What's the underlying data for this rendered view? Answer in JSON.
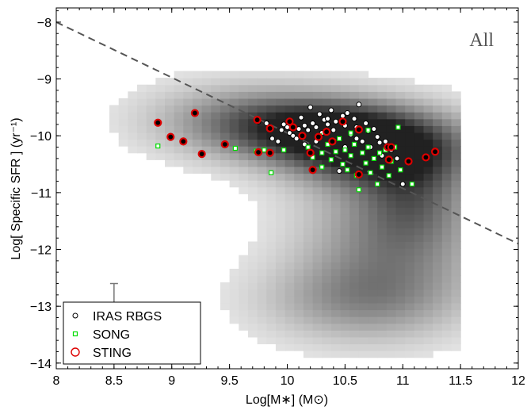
{
  "chart_data": {
    "type": "scatter",
    "panel_label": "All",
    "xlabel": "Log[M∗] (M⊙)",
    "ylabel": "Log[ Specific SFR ] (yr⁻¹)",
    "xlim": [
      8,
      12
    ],
    "ylim": [
      -14.1,
      -7.75
    ],
    "xticks": [
      8,
      8.5,
      9,
      9.5,
      10,
      10.5,
      11,
      11.5,
      12
    ],
    "xtick_labels": [
      "8",
      "8.5",
      "9",
      "9.5",
      "10",
      "10.5",
      "11",
      "11.5",
      "12"
    ],
    "yticks": [
      -14,
      -13,
      -12,
      -11,
      -10,
      -9,
      -8
    ],
    "ytick_labels": [
      "−14",
      "−13",
      "−12",
      "−11",
      "−10",
      "−9",
      "−8"
    ],
    "grid": false,
    "legend_position": "bottom-left",
    "reference_line": {
      "style": "dashed",
      "color": "#555555",
      "points": [
        [
          8,
          -8.0
        ],
        [
          12,
          -11.9
        ]
      ]
    },
    "error_bar": {
      "x": 8.5,
      "y": -13.0,
      "xerr": 0.07,
      "yerr_up": 0.4,
      "yerr_down": 0.3
    },
    "background_density": {
      "description": "grey 2D histogram of comparison galaxy sample",
      "x_range": [
        8.3,
        11.5
      ],
      "clumps": [
        {
          "x": 10.8,
          "y": -10.2,
          "sx": 0.55,
          "sy": 0.45,
          "w": 1.0
        },
        {
          "x": 10.2,
          "y": -9.85,
          "sx": 0.55,
          "sy": 0.4,
          "w": 0.75
        },
        {
          "x": 9.5,
          "y": -9.7,
          "sx": 0.55,
          "sy": 0.45,
          "w": 0.35
        },
        {
          "x": 10.9,
          "y": -11.8,
          "sx": 0.55,
          "sy": 0.9,
          "w": 0.5
        },
        {
          "x": 10.6,
          "y": -12.9,
          "sx": 0.6,
          "sy": 0.5,
          "w": 0.35
        },
        {
          "x": 11.1,
          "y": -11.0,
          "sx": 0.3,
          "sy": 0.6,
          "w": 0.35
        }
      ]
    },
    "series": [
      {
        "name": "IRAS RBGS",
        "marker": "circle-open",
        "color": "#000000",
        "points": [
          [
            9.75,
            -9.75
          ],
          [
            9.82,
            -9.78
          ],
          [
            9.87,
            -10.05
          ],
          [
            9.92,
            -10.1
          ],
          [
            9.95,
            -9.9
          ],
          [
            9.97,
            -9.8
          ],
          [
            10.0,
            -9.85
          ],
          [
            10.02,
            -9.95
          ],
          [
            10.05,
            -10.0
          ],
          [
            10.08,
            -10.05
          ],
          [
            10.1,
            -9.88
          ],
          [
            10.12,
            -9.68
          ],
          [
            10.15,
            -9.82
          ],
          [
            10.18,
            -9.9
          ],
          [
            10.2,
            -9.5
          ],
          [
            10.22,
            -9.78
          ],
          [
            10.25,
            -9.85
          ],
          [
            10.28,
            -9.62
          ],
          [
            10.3,
            -9.95
          ],
          [
            10.32,
            -9.72
          ],
          [
            10.35,
            -9.8
          ],
          [
            10.38,
            -9.55
          ],
          [
            10.4,
            -9.9
          ],
          [
            10.42,
            -9.75
          ],
          [
            10.45,
            -10.05
          ],
          [
            10.48,
            -9.65
          ],
          [
            10.5,
            -9.82
          ],
          [
            10.52,
            -9.6
          ],
          [
            10.55,
            -9.98
          ],
          [
            10.58,
            -9.7
          ],
          [
            10.6,
            -9.85
          ],
          [
            10.62,
            -9.45
          ],
          [
            10.65,
            -10.1
          ],
          [
            10.68,
            -9.78
          ],
          [
            10.7,
            -9.92
          ],
          [
            10.72,
            -10.2
          ],
          [
            10.75,
            -9.88
          ],
          [
            10.78,
            -10.02
          ],
          [
            10.8,
            -10.12
          ],
          [
            10.82,
            -10.35
          ],
          [
            10.85,
            -10.1
          ],
          [
            10.9,
            -10.25
          ],
          [
            10.95,
            -10.4
          ],
          [
            11.0,
            -10.85
          ],
          [
            10.45,
            -10.62
          ],
          [
            10.25,
            -10.1
          ],
          [
            10.15,
            -10.15
          ],
          [
            10.5,
            -10.2
          ],
          [
            10.35,
            -9.7
          ],
          [
            10.6,
            -10.05
          ]
        ]
      },
      {
        "name": "SONG",
        "marker": "square-open",
        "color": "#00dd00",
        "points": [
          [
            8.88,
            -10.18
          ],
          [
            9.55,
            -10.22
          ],
          [
            9.73,
            -10.27
          ],
          [
            9.8,
            -10.25
          ],
          [
            9.86,
            -10.65
          ],
          [
            9.97,
            -10.25
          ],
          [
            10.18,
            -10.2
          ],
          [
            10.22,
            -10.38
          ],
          [
            10.28,
            -10.0
          ],
          [
            10.3,
            -10.3
          ],
          [
            10.35,
            -10.15
          ],
          [
            10.38,
            -10.42
          ],
          [
            10.42,
            -10.28
          ],
          [
            10.45,
            -10.05
          ],
          [
            10.48,
            -10.5
          ],
          [
            10.5,
            -10.25
          ],
          [
            10.52,
            -10.6
          ],
          [
            10.55,
            -10.35
          ],
          [
            10.58,
            -10.15
          ],
          [
            10.6,
            -10.7
          ],
          [
            10.62,
            -10.95
          ],
          [
            10.65,
            -10.3
          ],
          [
            10.68,
            -10.48
          ],
          [
            10.7,
            -10.2
          ],
          [
            10.72,
            -10.65
          ],
          [
            10.75,
            -10.4
          ],
          [
            10.78,
            -10.85
          ],
          [
            10.8,
            -10.3
          ],
          [
            10.82,
            -10.55
          ],
          [
            10.85,
            -10.25
          ],
          [
            10.88,
            -10.7
          ],
          [
            10.9,
            -10.45
          ],
          [
            10.93,
            -10.2
          ],
          [
            10.96,
            -9.85
          ],
          [
            10.98,
            -10.6
          ],
          [
            11.08,
            -10.85
          ],
          [
            10.4,
            -10.1
          ],
          [
            10.55,
            -9.95
          ],
          [
            10.7,
            -9.9
          ],
          [
            10.3,
            -10.55
          ]
        ]
      },
      {
        "name": "STING",
        "marker": "circle-open-thick",
        "color": "#dd0000",
        "points": [
          [
            8.88,
            -9.77
          ],
          [
            8.99,
            -10.02
          ],
          [
            9.1,
            -10.1
          ],
          [
            9.2,
            -9.6
          ],
          [
            9.26,
            -10.32
          ],
          [
            9.46,
            -10.15
          ],
          [
            9.74,
            -9.72
          ],
          [
            9.75,
            -10.29
          ],
          [
            9.85,
            -10.3
          ],
          [
            9.85,
            -9.87
          ],
          [
            10.05,
            -9.85
          ],
          [
            10.13,
            -10.0
          ],
          [
            10.2,
            -10.3
          ],
          [
            10.22,
            -10.6
          ],
          [
            10.27,
            -10.02
          ],
          [
            10.34,
            -9.93
          ],
          [
            10.39,
            -10.1
          ],
          [
            10.48,
            -9.75
          ],
          [
            10.62,
            -9.89
          ],
          [
            10.62,
            -10.68
          ],
          [
            10.87,
            -10.2
          ],
          [
            10.88,
            -10.42
          ],
          [
            10.9,
            -10.2
          ],
          [
            11.05,
            -10.45
          ],
          [
            11.2,
            -10.38
          ],
          [
            11.28,
            -10.28
          ],
          [
            10.02,
            -9.75
          ]
        ]
      }
    ]
  }
}
